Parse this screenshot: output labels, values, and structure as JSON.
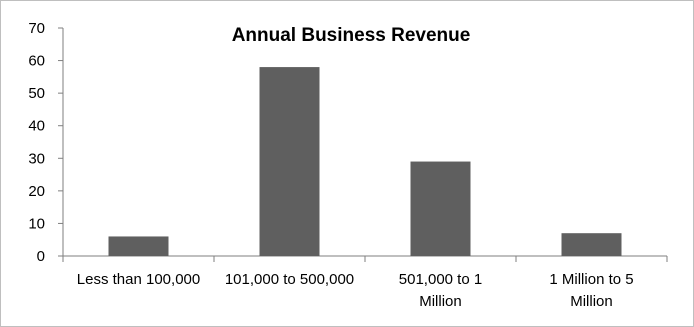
{
  "chart_data": {
    "type": "bar",
    "title": "Annual Business Revenue",
    "categories": [
      [
        "Less than 100,000"
      ],
      [
        "101,000 to 500,000"
      ],
      [
        "501,000 to 1",
        "Million"
      ],
      [
        "1 Million to 5",
        "Million"
      ]
    ],
    "values": [
      6,
      58,
      29,
      7
    ],
    "ylim": [
      0,
      70
    ],
    "yticks": [
      0,
      10,
      20,
      30,
      40,
      50,
      60,
      70
    ],
    "grid": false,
    "legend": "none",
    "bar_color": "#5f5f5f",
    "axis_color": "#7f7f7f"
  }
}
